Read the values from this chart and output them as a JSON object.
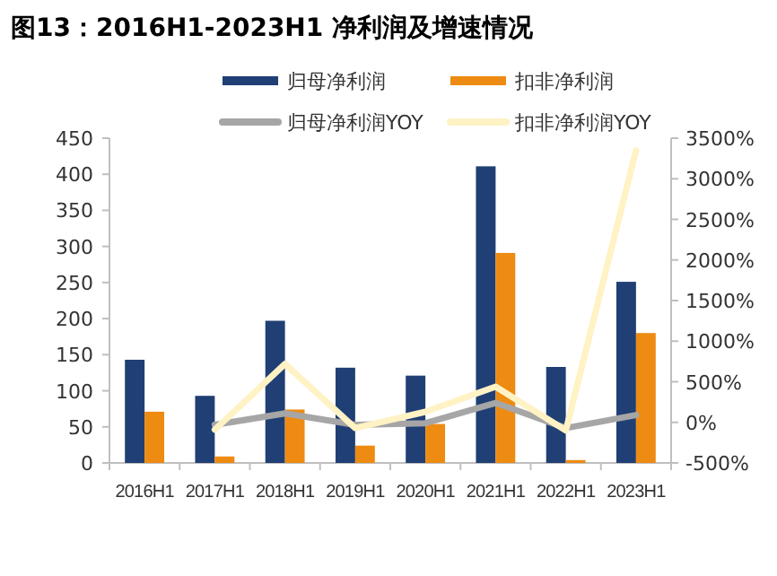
{
  "chart_data": {
    "type": "bar",
    "title": "图13：2016H1-2023H1 净利润及增速情况",
    "categories": [
      "2016H1",
      "2017H1",
      "2018H1",
      "2019H1",
      "2020H1",
      "2021H1",
      "2022H1",
      "2023H1"
    ],
    "series": [
      {
        "name": "归母净利润",
        "color": "#203f74",
        "values": [
          143,
          93,
          197,
          132,
          121,
          411,
          133,
          251
        ]
      },
      {
        "name": "扣非净利润",
        "color": "#ed8b12",
        "values": [
          71,
          9,
          74,
          24,
          54,
          291,
          4,
          180
        ]
      },
      {
        "name": "归母净利润YOY",
        "type": "line",
        "axis": "y2",
        "color": "#a6a6a6",
        "values": [
          null,
          -30,
          110,
          -30,
          -10,
          240,
          -70,
          90
        ]
      },
      {
        "name": "扣非净利润YOY",
        "type": "line",
        "axis": "y2",
        "color": "#fff2c4",
        "values": [
          null,
          -90,
          720,
          -70,
          130,
          440,
          -100,
          3350
        ]
      }
    ],
    "ylim": [
      0,
      450
    ],
    "yticks": [
      0,
      50,
      100,
      150,
      200,
      250,
      300,
      350,
      400,
      450
    ],
    "y2lim": [
      -500,
      3500
    ],
    "y2ticks": [
      {
        "value": -500,
        "label": "-500%"
      },
      {
        "value": 0,
        "label": "0%"
      },
      {
        "value": 500,
        "label": "500%"
      },
      {
        "value": 1000,
        "label": "1000%"
      },
      {
        "value": 1500,
        "label": "1500%"
      },
      {
        "value": 2000,
        "label": "2000%"
      },
      {
        "value": 2500,
        "label": "2500%"
      },
      {
        "value": 3000,
        "label": "3000%"
      },
      {
        "value": 3500,
        "label": "3500%"
      }
    ],
    "legend": "top",
    "grid": false,
    "marker": "none"
  }
}
